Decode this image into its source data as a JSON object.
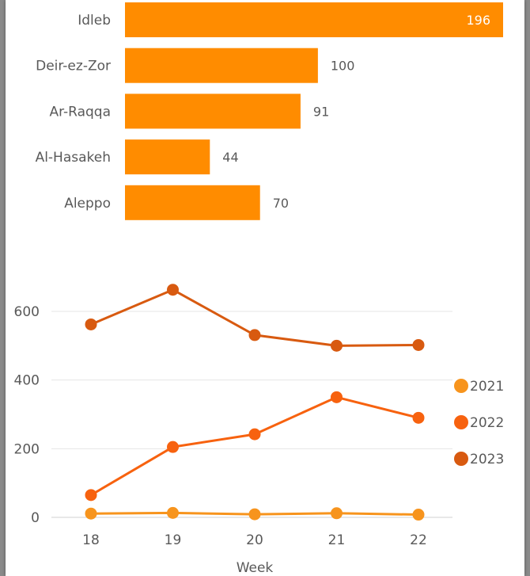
{
  "chart_data": [
    {
      "type": "bar",
      "orientation": "horizontal",
      "categories": [
        "Idleb",
        "Deir-ez-Zor",
        "Ar-Raqqa",
        "Al-Hasakeh",
        "Aleppo"
      ],
      "values": [
        196,
        100,
        91,
        44,
        70
      ],
      "colors": {
        "bar": "#FF8C00",
        "label": "#595959"
      },
      "xlim": [
        0,
        196
      ]
    },
    {
      "type": "line",
      "x": [
        18,
        19,
        20,
        21,
        22
      ],
      "xlabel": "Week",
      "ylabel": "",
      "ylim": [
        0,
        700
      ],
      "yticks": [
        0,
        200,
        400,
        600
      ],
      "grid": true,
      "legend_position": "right",
      "series": [
        {
          "name": "2021",
          "values": [
            11,
            13,
            9,
            12,
            8
          ],
          "color": "#F7941D"
        },
        {
          "name": "2022",
          "values": [
            65,
            205,
            242,
            350,
            290
          ],
          "color": "#F7620F"
        },
        {
          "name": "2023",
          "values": [
            562,
            663,
            531,
            500,
            502
          ],
          "color": "#D85A10"
        }
      ]
    }
  ]
}
